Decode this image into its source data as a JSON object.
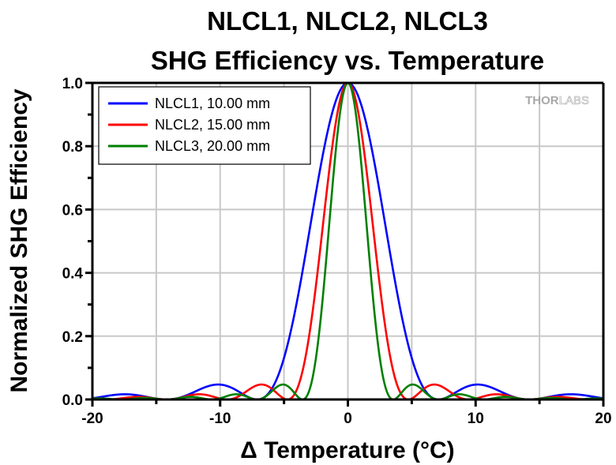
{
  "chart_data": {
    "type": "line",
    "title": [
      "NLCL1, NLCL2, NLCL3",
      "SHG Efficiency vs. Temperature"
    ],
    "xlabel": "Δ Temperature (°C)",
    "ylabel": "Normalized SHG Efficiency",
    "xlim": [
      -20,
      20
    ],
    "ylim": [
      0,
      1.0
    ],
    "xticks": [
      "-20",
      "-10",
      "0",
      "10",
      "20"
    ],
    "xtick_values": [
      -20,
      -10,
      0,
      10,
      20
    ],
    "yticks": [
      "0.0",
      "0.2",
      "0.4",
      "0.6",
      "0.8",
      "1.0"
    ],
    "ytick_values": [
      0,
      0.2,
      0.4,
      0.6,
      0.8,
      1.0
    ],
    "grid": true,
    "legend_position": "top-left",
    "watermark": {
      "bold": "THOR",
      "light": "LABS"
    },
    "series": [
      {
        "name": "NLCL1, 10.00 mm",
        "color": "#0000ff",
        "model": "sinc^2",
        "first_zero": 7.1,
        "peak": 1.0,
        "side_lobe_peaks": [
          [
            -10.2,
            0.047
          ],
          [
            10.2,
            0.047
          ],
          [
            -17.4,
            0.016
          ],
          [
            17.4,
            0.016
          ]
        ]
      },
      {
        "name": "NLCL2, 15.00 mm",
        "color": "#ff0000",
        "model": "sinc^2",
        "first_zero": 4.73,
        "peak": 1.0,
        "side_lobe_peaks": [
          [
            -6.8,
            0.047
          ],
          [
            6.8,
            0.047
          ],
          [
            -11.6,
            0.016
          ],
          [
            11.6,
            0.016
          ]
        ]
      },
      {
        "name": "NLCL3, 20.00 mm",
        "color": "#008000",
        "model": "sinc^2",
        "first_zero": 3.55,
        "peak": 1.0,
        "side_lobe_peaks": [
          [
            -5.1,
            0.047
          ],
          [
            5.1,
            0.047
          ],
          [
            -8.7,
            0.016
          ],
          [
            8.7,
            0.016
          ]
        ]
      }
    ]
  }
}
